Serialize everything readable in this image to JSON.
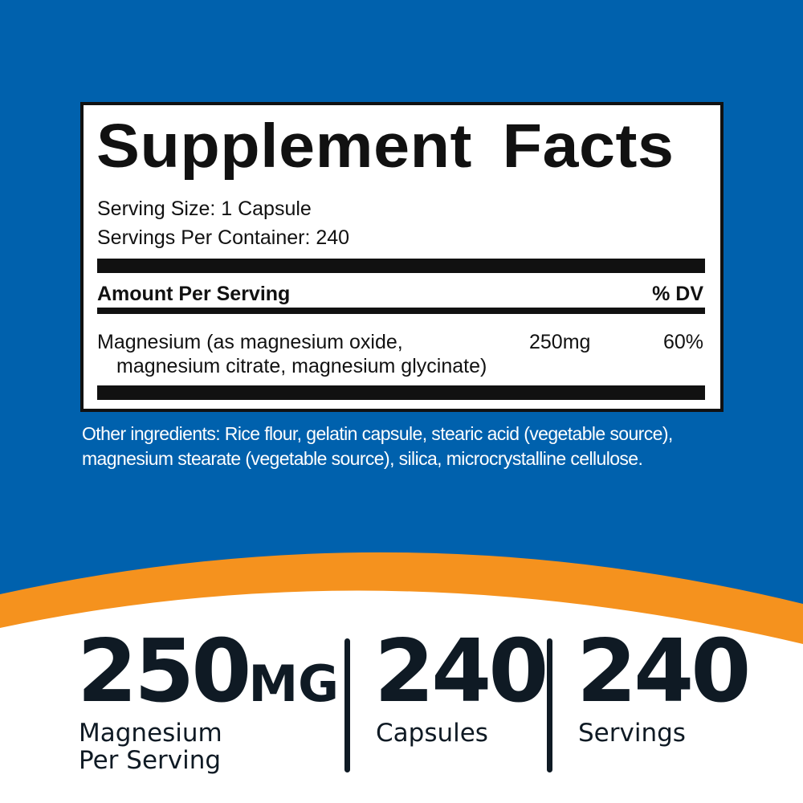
{
  "colors": {
    "background": "#0061ad",
    "accent": "#f5921e",
    "text": "#0f1a24"
  },
  "label": {
    "title": "Supplement Facts",
    "serving_size": "Serving Size: 1 Capsule",
    "servings_per_container": "Servings Per Container: 240",
    "amount_header": "Amount Per Serving",
    "dv_header": "% DV",
    "ingredient_line1": "Magnesium (as magnesium oxide,",
    "ingredient_line2": "magnesium citrate, magnesium glycinate)",
    "amount": "250mg",
    "dv": "60%"
  },
  "other_ingredients": {
    "line1": "Other ingredients: Rice flour, gelatin capsule, stearic acid (vegetable source),",
    "line2": "magnesium stearate (vegetable source), silica, microcrystalline cellulose."
  },
  "stats": [
    {
      "value": "250",
      "unit": "MG",
      "line1": "Magnesium",
      "line2": "Per Serving"
    },
    {
      "value": "240",
      "line1": "Capsules"
    },
    {
      "value": "240",
      "line1": "Servings"
    }
  ]
}
